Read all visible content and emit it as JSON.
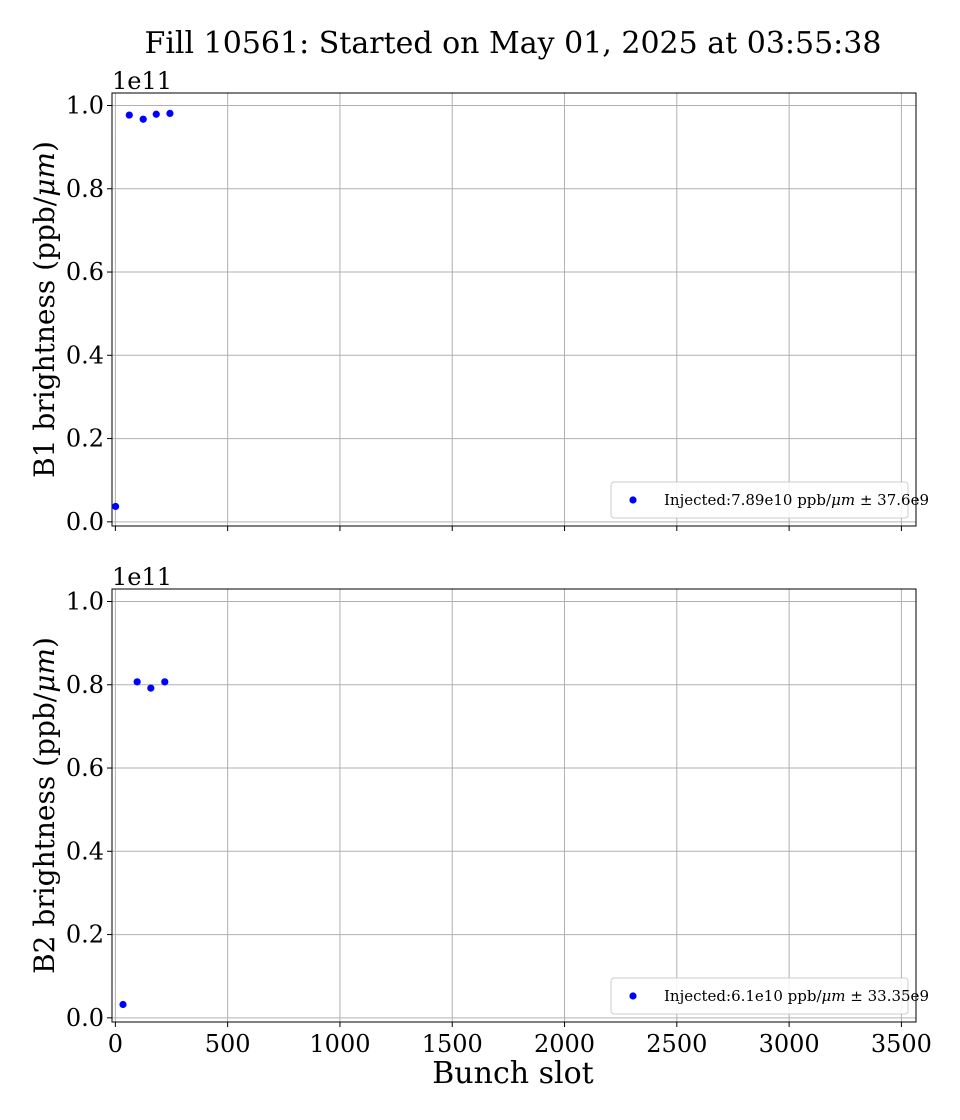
{
  "figure": {
    "title": "Fill 10561: Started on May 01, 2025 at 03:55:38",
    "xlabel": "Bunch slot"
  },
  "chart_data": [
    {
      "type": "scatter",
      "ylabel": "B1 brightness (ppb/μm)",
      "ylabel_parts": [
        "B1 brightness (ppb/",
        "μm",
        ")"
      ],
      "offset_text": "1e11",
      "xlim": [
        -15,
        3565
      ],
      "ylim": [
        -0.01,
        1.03
      ],
      "xticks": [
        0,
        500,
        1000,
        1500,
        2000,
        2500,
        3000,
        3500
      ],
      "xtick_labels_visible": false,
      "yticks": [
        0.0,
        0.2,
        0.4,
        0.6,
        0.8,
        1.0
      ],
      "ytick_labels": [
        "0.0",
        "0.2",
        "0.4",
        "0.6",
        "0.8",
        "1.0"
      ],
      "grid": true,
      "legend_position": "lower-right",
      "series": [
        {
          "label_parts": [
            "Injected:7.89e10 ppb/",
            "μm",
            " ± 37.6e9"
          ],
          "color": "#0000ff",
          "x": [
            1,
            62,
            124,
            182,
            243
          ],
          "y": [
            0.037,
            0.977,
            0.967,
            0.979,
            0.981
          ]
        }
      ]
    },
    {
      "type": "scatter",
      "ylabel": "B2 brightness (ppb/μm)",
      "ylabel_parts": [
        "B2 brightness (ppb/",
        "μm",
        ")"
      ],
      "offset_text": "1e11",
      "xlim": [
        -15,
        3565
      ],
      "ylim": [
        -0.01,
        1.03
      ],
      "xticks": [
        0,
        500,
        1000,
        1500,
        2000,
        2500,
        3000,
        3500
      ],
      "xtick_labels": [
        "0",
        "500",
        "1000",
        "1500",
        "2000",
        "2500",
        "3000",
        "3500"
      ],
      "yticks": [
        0.0,
        0.2,
        0.4,
        0.6,
        0.8,
        1.0
      ],
      "ytick_labels": [
        "0.0",
        "0.2",
        "0.4",
        "0.6",
        "0.8",
        "1.0"
      ],
      "grid": true,
      "legend_position": "lower-right",
      "series": [
        {
          "label_parts": [
            "Injected:6.1e10 ppb/",
            "μm",
            " ± 33.35e9"
          ],
          "color": "#0000ff",
          "x": [
            34,
            97,
            158,
            220
          ],
          "y": [
            0.032,
            0.807,
            0.792,
            0.807
          ]
        }
      ]
    }
  ]
}
